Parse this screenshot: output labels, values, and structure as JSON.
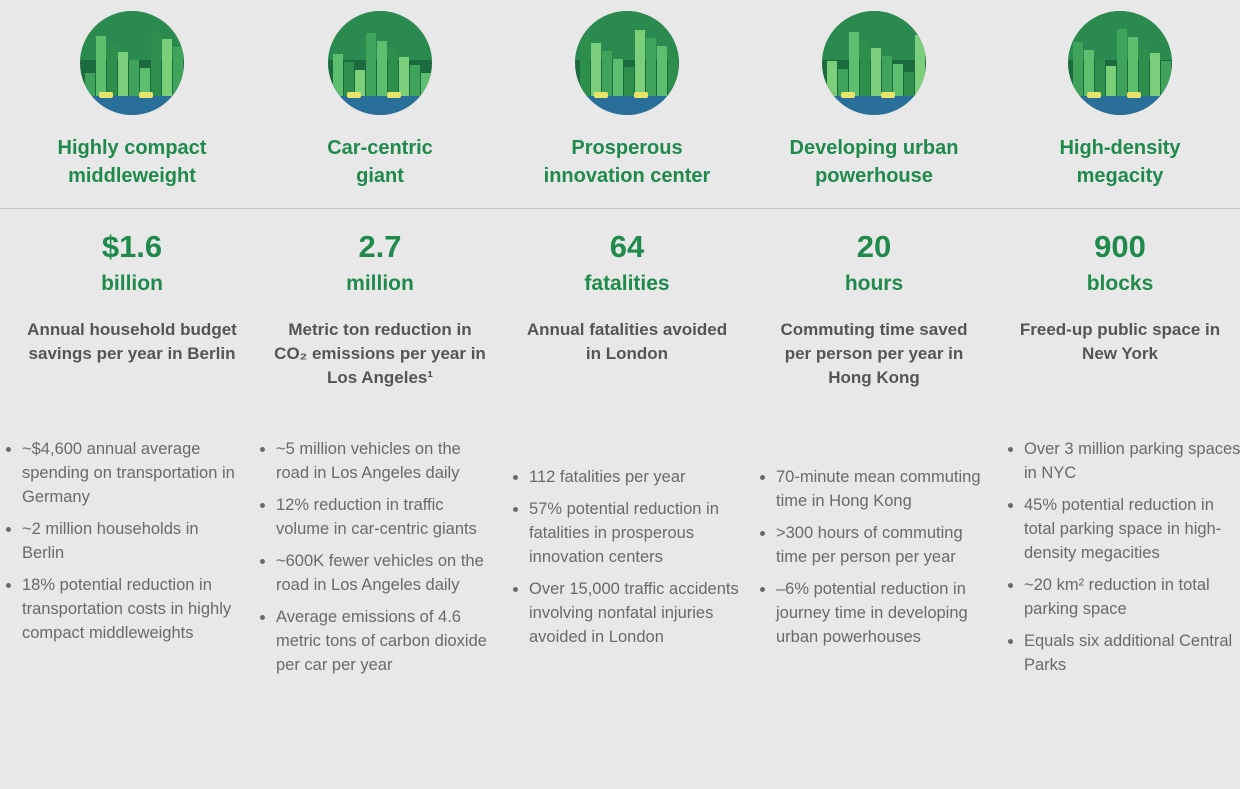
{
  "columns": [
    {
      "title": [
        "Highly compact",
        "middleweight"
      ],
      "value": "$1.6",
      "unit": "billion",
      "description": "Annual household budget savings per year in Berlin",
      "bullets": [
        "~$4,600 annual average spending on transportation in Germany",
        "~2 million households in Berlin",
        "18% potential reduction in transportation costs in highly compact middleweights"
      ]
    },
    {
      "title": [
        "Car-centric",
        "giant"
      ],
      "value": "2.7",
      "unit": "million",
      "description": "Metric ton reduction in CO₂ emissions per year in Los Angeles¹",
      "bullets": [
        "~5 million vehicles on the road in Los Angeles daily",
        "12% reduction in traffic volume in car-centric giants",
        "~600K fewer vehicles on the road in Los Angeles daily",
        "Average emissions of 4.6 metric tons of carbon dioxide per car per year"
      ]
    },
    {
      "title": [
        "Prosperous",
        "innovation center"
      ],
      "value": "64",
      "unit": "fatalities",
      "description": "Annual fatalities avoided in London",
      "bullets": [
        "112 fatalities per year",
        "57% potential reduction in fatalities in prosperous innovation centers",
        "Over 15,000 traffic accidents involving nonfatal injuries avoided in London"
      ]
    },
    {
      "title": [
        "Developing urban",
        "powerhouse"
      ],
      "value": "20",
      "unit": "hours",
      "description": "Commuting time saved per person per year in Hong Kong",
      "bullets": [
        "70-minute mean commuting time in Hong Kong",
        ">300 hours of commuting time per person per year",
        "–6% potential reduction in journey time in developing urban powerhouses"
      ]
    },
    {
      "title": [
        "High-density",
        "megacity"
      ],
      "value": "900",
      "unit": "blocks",
      "description": "Freed-up public space in New York",
      "bullets": [
        "Over 3 million parking spaces in NYC",
        "45% potential reduction in total parking space in high-density megacities",
        "~20 km² reduction in total parking space",
        "Equals six additional Central Parks"
      ]
    }
  ]
}
